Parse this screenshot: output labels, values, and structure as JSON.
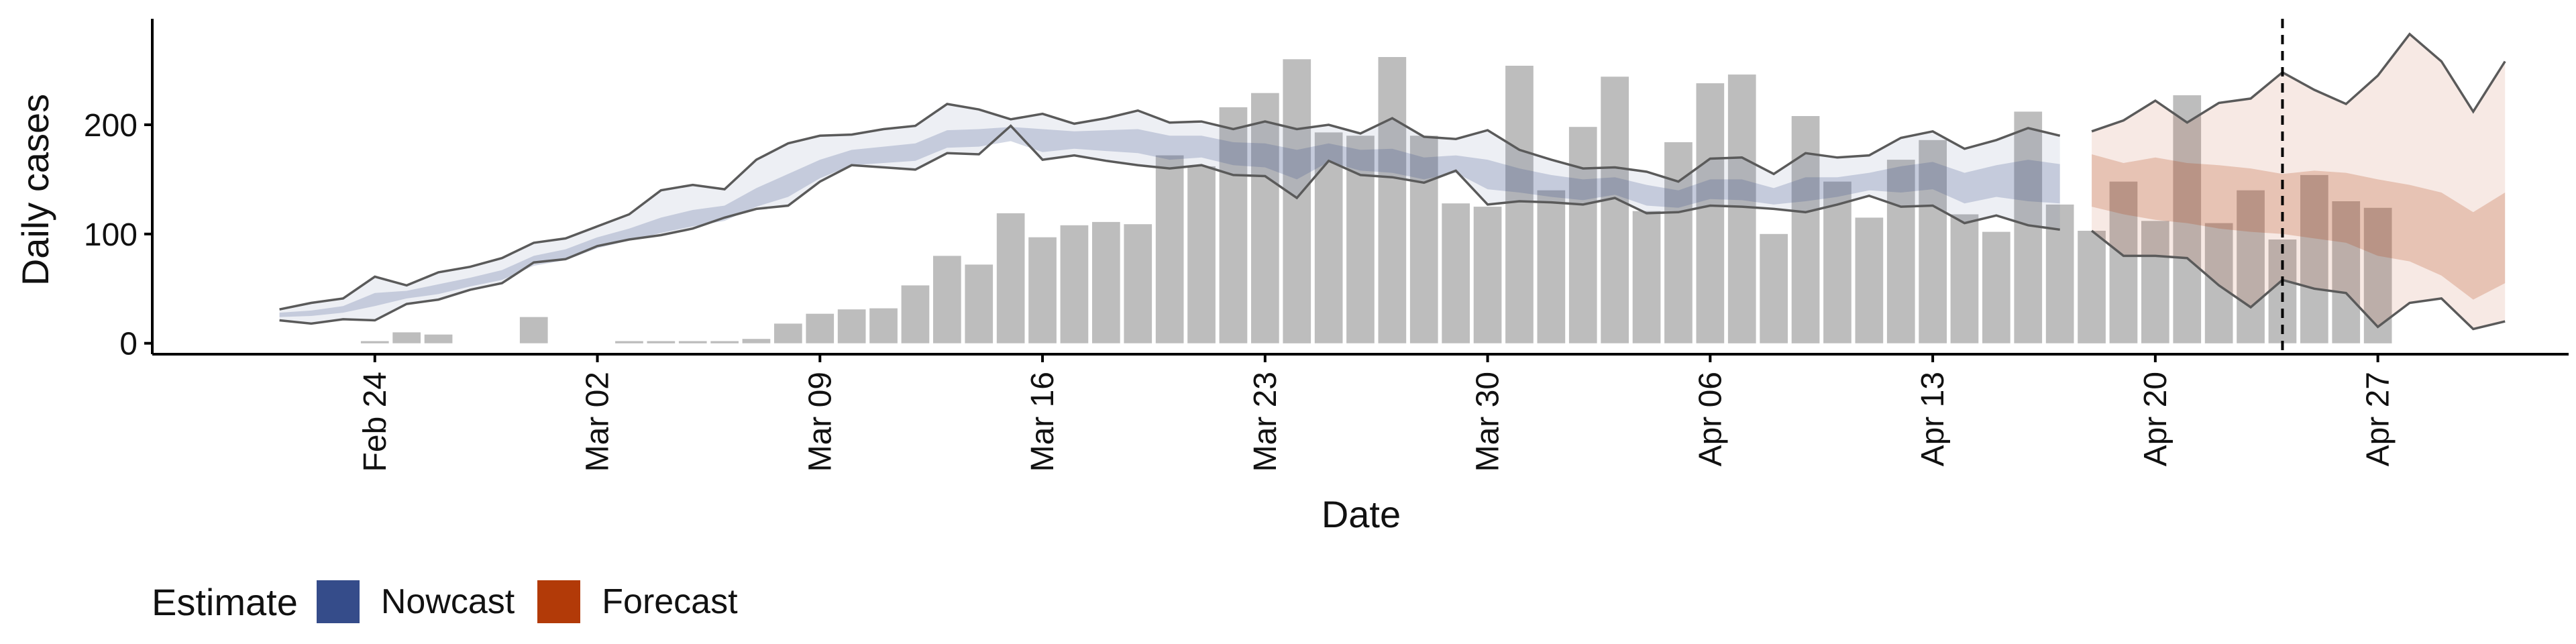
{
  "chart_data": {
    "type": "bar",
    "xlabel": "Date",
    "ylabel": "Daily cases",
    "ylim": [
      -10,
      297
    ],
    "yticks": [
      0,
      100,
      200
    ],
    "x_start": "2020-02-21",
    "xlim_dates": [
      "2020-02-17",
      "2020-05-03"
    ],
    "xticks": [
      {
        "date": "2020-02-24",
        "label": "Feb 24"
      },
      {
        "date": "2020-03-02",
        "label": "Mar 02"
      },
      {
        "date": "2020-03-09",
        "label": "Mar 09"
      },
      {
        "date": "2020-03-16",
        "label": "Mar 16"
      },
      {
        "date": "2020-03-23",
        "label": "Mar 23"
      },
      {
        "date": "2020-03-30",
        "label": "Mar 30"
      },
      {
        "date": "2020-04-06",
        "label": "Apr 06"
      },
      {
        "date": "2020-04-13",
        "label": "Apr 13"
      },
      {
        "date": "2020-04-20",
        "label": "Apr 20"
      },
      {
        "date": "2020-04-27",
        "label": "Apr 27"
      }
    ],
    "vline_date": "2020-04-24",
    "bars": [
      0,
      0,
      0,
      2,
      10,
      8,
      0,
      0,
      24,
      0,
      0,
      2,
      2,
      2,
      2,
      4,
      18,
      27,
      31,
      32,
      53,
      80,
      72,
      119,
      97,
      108,
      111,
      109,
      172,
      162,
      216,
      229,
      260,
      193,
      190,
      262,
      190,
      128,
      125,
      254,
      140,
      198,
      244,
      121,
      184,
      238,
      246,
      100,
      208,
      148,
      115,
      168,
      186,
      118,
      102,
      212,
      127,
      103,
      148,
      112,
      227,
      110,
      140,
      95,
      154,
      130,
      124
    ],
    "nowcast": {
      "outer_upper": [
        31,
        37,
        41,
        61,
        53,
        65,
        70,
        78,
        92,
        96,
        107,
        118,
        140,
        145,
        141,
        168,
        183,
        190,
        191,
        196,
        199,
        219,
        214,
        205,
        210,
        201,
        206,
        213,
        202,
        203,
        196,
        203,
        196,
        200,
        192,
        206,
        189,
        187,
        195,
        177,
        168,
        160,
        161,
        157,
        148,
        169,
        170,
        155,
        174,
        170,
        172,
        188,
        194,
        178,
        186,
        197,
        190
      ],
      "outer_lower": [
        21,
        18,
        22,
        21,
        36,
        40,
        49,
        55,
        74,
        77,
        89,
        95,
        99,
        105,
        115,
        123,
        126,
        148,
        163,
        161,
        159,
        174,
        173,
        199,
        168,
        172,
        167,
        163,
        160,
        163,
        154,
        153,
        133,
        167,
        154,
        152,
        147,
        158,
        127,
        130,
        129,
        127,
        133,
        119,
        120,
        126,
        125,
        123,
        120,
        127,
        135,
        125,
        126,
        110,
        117,
        108,
        104
      ],
      "inner_upper": [
        28,
        30,
        34,
        46,
        48,
        54,
        60,
        67,
        80,
        86,
        97,
        105,
        115,
        122,
        126,
        142,
        155,
        168,
        177,
        180,
        183,
        195,
        196,
        198,
        196,
        194,
        195,
        196,
        190,
        190,
        184,
        183,
        177,
        183,
        177,
        178,
        170,
        172,
        168,
        160,
        154,
        150,
        152,
        145,
        140,
        150,
        150,
        142,
        152,
        152,
        156,
        162,
        166,
        156,
        163,
        168,
        164
      ],
      "inner_lower": [
        24,
        25,
        28,
        34,
        41,
        45,
        52,
        58,
        71,
        76,
        87,
        94,
        101,
        107,
        112,
        125,
        134,
        151,
        163,
        165,
        167,
        179,
        180,
        185,
        175,
        178,
        176,
        174,
        168,
        170,
        163,
        161,
        150,
        166,
        158,
        156,
        150,
        156,
        141,
        138,
        134,
        131,
        136,
        126,
        124,
        132,
        131,
        127,
        130,
        134,
        140,
        138,
        141,
        128,
        134,
        130,
        128
      ]
    },
    "forecast": {
      "outer_upper": [
        194,
        204,
        222,
        202,
        220,
        224,
        248,
        232,
        219,
        245,
        283,
        258,
        212,
        258
      ],
      "outer_lower": [
        103,
        80,
        80,
        78,
        53,
        33,
        58,
        50,
        46,
        15,
        37,
        41,
        13,
        20
      ],
      "inner_upper": [
        173,
        165,
        170,
        165,
        163,
        160,
        155,
        158,
        156,
        150,
        145,
        138,
        120,
        138
      ],
      "inner_lower": [
        125,
        118,
        113,
        110,
        105,
        102,
        100,
        96,
        92,
        80,
        75,
        62,
        40,
        55
      ]
    },
    "series": [
      {
        "name": "Nowcast",
        "color": "#354C8A"
      },
      {
        "name": "Forecast",
        "color": "#B23A08"
      }
    ],
    "legend": {
      "title": "Estimate",
      "position": "bottom-left"
    },
    "grid": false
  }
}
